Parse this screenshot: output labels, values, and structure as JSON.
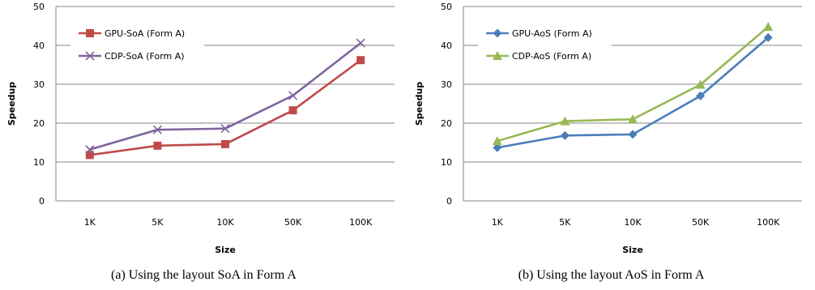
{
  "chart_data": [
    {
      "type": "line",
      "categories": [
        "1K",
        "5K",
        "10K",
        "50K",
        "100K"
      ],
      "series": [
        {
          "name": "GPU-SoA (Form A)",
          "values": [
            11.8,
            14.2,
            14.6,
            23.3,
            36.2
          ],
          "color": "#be4b48",
          "marker": "square"
        },
        {
          "name": "CDP-SoA (Form A)",
          "values": [
            13.2,
            18.3,
            18.6,
            27.1,
            40.6
          ],
          "color": "#7e649e",
          "marker": "x"
        }
      ],
      "xlabel": "Size",
      "ylabel": "Speedup",
      "ylim": [
        0,
        50
      ],
      "yticks": [
        0,
        10,
        20,
        30,
        40,
        50
      ],
      "grid": "horizontal",
      "legend": "top-left",
      "caption": "(a)  Using the layout SoA in Form A"
    },
    {
      "type": "line",
      "categories": [
        "1K",
        "5K",
        "10K",
        "50K",
        "100K"
      ],
      "series": [
        {
          "name": "GPU-AoS (Form A)",
          "values": [
            13.7,
            16.8,
            17.1,
            27.0,
            42.0
          ],
          "color": "#4a7ebb",
          "marker": "diamond"
        },
        {
          "name": "CDP-AoS (Form A)",
          "values": [
            15.4,
            20.5,
            21.0,
            29.9,
            44.8
          ],
          "color": "#98b954",
          "marker": "triangle"
        }
      ],
      "xlabel": "Size",
      "ylabel": "Speedup",
      "ylim": [
        0,
        50
      ],
      "yticks": [
        0,
        10,
        20,
        30,
        40,
        50
      ],
      "grid": "horizontal",
      "legend": "top-left",
      "caption": "(b)  Using the layout AoS in Form A"
    }
  ]
}
